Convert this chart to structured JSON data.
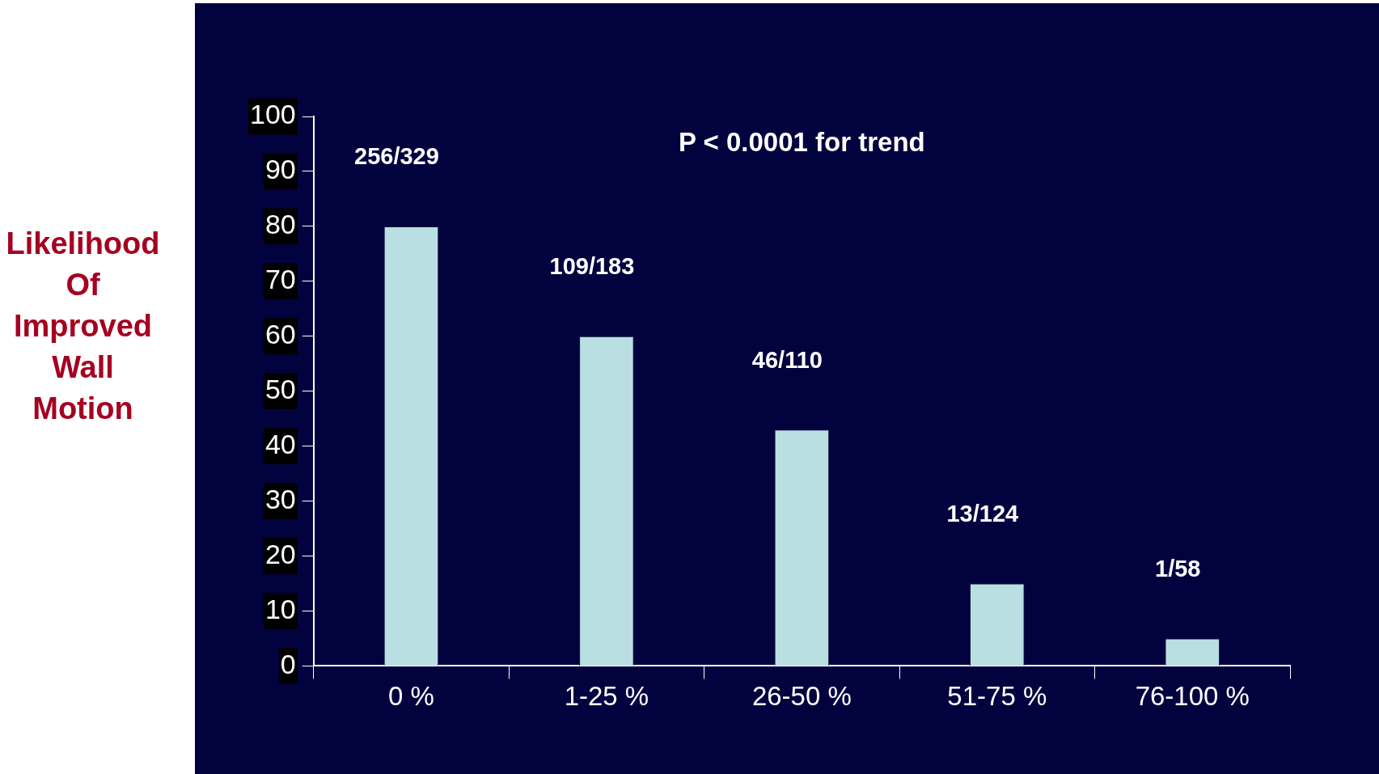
{
  "chart_data": {
    "type": "bar",
    "ylabel": "Likelihood Of Improved Wall Motion",
    "categories": [
      "0 %",
      "1-25 %",
      "26-50 %",
      "51-75 %",
      "76-100 %"
    ],
    "values": [
      80,
      60,
      43,
      15,
      5
    ],
    "value_labels": [
      "256/329",
      "109/183",
      "46/110",
      "13/124",
      "1/58"
    ],
    "color": "#b9dfe3",
    "ylim": [
      0,
      100
    ],
    "yticks": [
      0,
      10,
      20,
      30,
      40,
      50,
      60,
      70,
      80,
      90,
      100
    ],
    "grid": false,
    "legend": false,
    "annotations": [
      "P < 0.0001 for trend"
    ]
  }
}
